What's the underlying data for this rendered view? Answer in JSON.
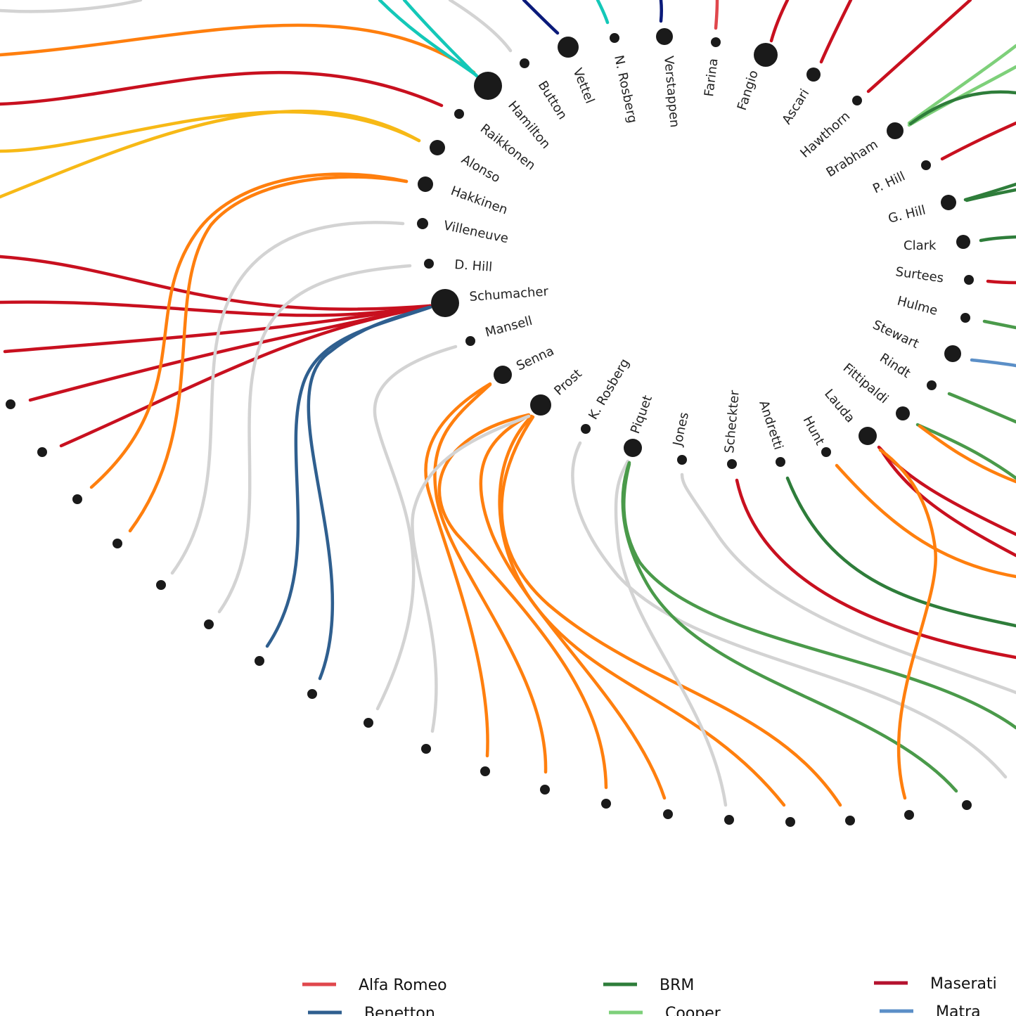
{
  "colors": {
    "alfa_romeo": "#e0474c",
    "benetton": "#2f5f8f",
    "brm": "#2e7d3a",
    "cooper": "#7ed07a",
    "maserati": "#b5122e",
    "matra": "#5b8fc7",
    "ferrari": "#c8101f",
    "mclaren": "#ff7f0e",
    "renault": "#f7b916",
    "mercedes": "#14c8b8",
    "williams_gray": "#d3d3d3",
    "red_bull": "#0a1a7a",
    "lotus_green": "#4a9a4a",
    "dot": "#1a1a1a"
  },
  "drivers": [
    {
      "id": "hamilton",
      "name": "Hamilton"
    },
    {
      "id": "button",
      "name": "Button"
    },
    {
      "id": "vettel",
      "name": "Vettel"
    },
    {
      "id": "nrosberg",
      "name": "N. Rosberg"
    },
    {
      "id": "verstappen",
      "name": "Verstappen"
    },
    {
      "id": "farina",
      "name": "Farina"
    },
    {
      "id": "fangio",
      "name": "Fangio"
    },
    {
      "id": "ascari",
      "name": "Ascari"
    },
    {
      "id": "hawthorn",
      "name": "Hawthorn"
    },
    {
      "id": "brabham",
      "name": "Brabham"
    },
    {
      "id": "phill",
      "name": "P. Hill"
    },
    {
      "id": "ghill",
      "name": "G. Hill"
    },
    {
      "id": "clark",
      "name": "Clark"
    },
    {
      "id": "surtees",
      "name": "Surtees"
    },
    {
      "id": "hulme",
      "name": "Hulme"
    },
    {
      "id": "stewart",
      "name": "Stewart"
    },
    {
      "id": "rindt",
      "name": "Rindt"
    },
    {
      "id": "fittipaldi",
      "name": "Fittipaldi"
    },
    {
      "id": "lauda",
      "name": "Lauda"
    },
    {
      "id": "hunt",
      "name": "Hunt"
    },
    {
      "id": "andretti",
      "name": "Andretti"
    },
    {
      "id": "scheckter",
      "name": "Scheckter"
    },
    {
      "id": "jones",
      "name": "Jones"
    },
    {
      "id": "piquet",
      "name": "Piquet"
    },
    {
      "id": "krosberg",
      "name": "K. Rosberg"
    },
    {
      "id": "prost",
      "name": "Prost"
    },
    {
      "id": "senna",
      "name": "Senna"
    },
    {
      "id": "mansell",
      "name": "Mansell"
    },
    {
      "id": "schumacher",
      "name": "Schumacher"
    },
    {
      "id": "dhill",
      "name": "D. Hill"
    },
    {
      "id": "villeneuve",
      "name": "Villeneuve"
    },
    {
      "id": "hakkinen",
      "name": "Hakkinen"
    },
    {
      "id": "alonso",
      "name": "Alonso"
    },
    {
      "id": "raikkonen",
      "name": "Raikkonen"
    }
  ],
  "legend": [
    {
      "label": "Alfa Romeo",
      "color": "#e0474c"
    },
    {
      "label": "BRM",
      "color": "#2e7d3a"
    },
    {
      "label": "Maserati",
      "color": "#b5122e"
    },
    {
      "label": "Benetton",
      "color": "#2f5f8f"
    },
    {
      "label": "Cooper",
      "color": "#7ed07a"
    },
    {
      "label": "Matra",
      "color": "#5b8fc7"
    }
  ]
}
